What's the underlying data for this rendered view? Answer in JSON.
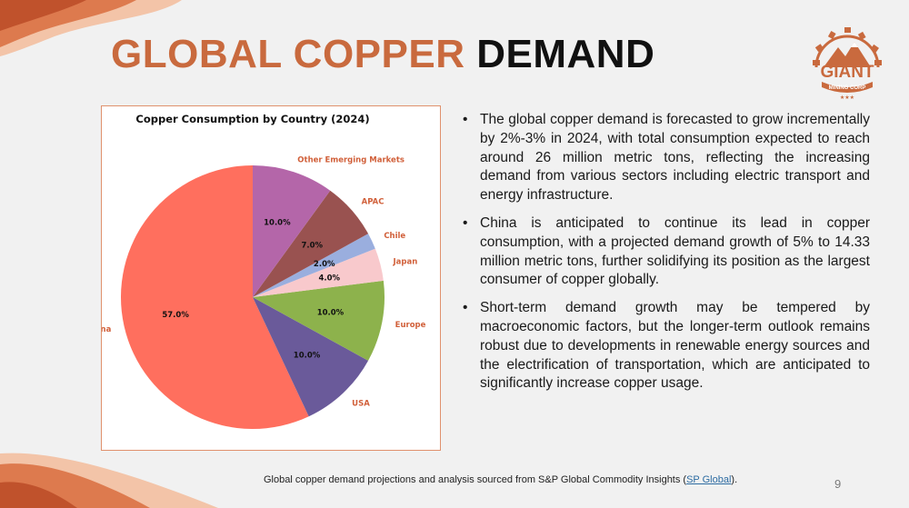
{
  "slide": {
    "title_accent": "GLOBAL COPPER",
    "title_dark": "DEMAND",
    "page_number": "9"
  },
  "logo": {
    "name": "GIANT",
    "subtitle": "MINING CORP"
  },
  "colors": {
    "accent": "#c96a3e",
    "title_dark": "#111111",
    "label_text": "#d1603a",
    "frame_border": "#e0916d"
  },
  "bullets": [
    "The global copper demand is forecasted to grow incrementally by 2%-3% in 2024, with total consumption expected to reach around 26 million metric tons, reflecting the increasing demand from various sectors including electric transport and energy infrastructure.",
    "China is anticipated to continue its lead in copper consumption, with a projected demand growth of 5% to 14.33 million metric tons, further solidifying its position as the largest consumer of copper globally.",
    "Short-term demand growth may be tempered by macroeconomic factors, but the longer-term outlook remains robust due to developments in renewable energy sources and the electrification of transportation, which are anticipated to significantly increase copper usage."
  ],
  "source": {
    "prefix": "Global copper demand projections and analysis sourced from S&P Global Commodity Insights (",
    "link_text": "SP Global",
    "suffix": ")."
  },
  "chart_data": {
    "type": "pie",
    "title": "Copper Consumption by Country (2024)",
    "start_angle_deg": -90,
    "direction": "counterclockwise",
    "slices": [
      {
        "label": "China",
        "value": 57.0,
        "pct_label": "57.0%",
        "color": "#ff6f5e"
      },
      {
        "label": "USA",
        "value": 10.0,
        "pct_label": "10.0%",
        "color": "#6a5a9a"
      },
      {
        "label": "Europe",
        "value": 10.0,
        "pct_label": "10.0%",
        "color": "#8db24c"
      },
      {
        "label": "Japan",
        "value": 4.0,
        "pct_label": "4.0%",
        "color": "#f8c9cc"
      },
      {
        "label": "Chile",
        "value": 2.0,
        "pct_label": "2.0%",
        "color": "#9aaede"
      },
      {
        "label": "APAC",
        "value": 7.0,
        "pct_label": "7.0%",
        "color": "#995250"
      },
      {
        "label": "Other Emerging Markets",
        "value": 10.0,
        "pct_label": "10.0%",
        "color": "#b466a9"
      }
    ]
  }
}
